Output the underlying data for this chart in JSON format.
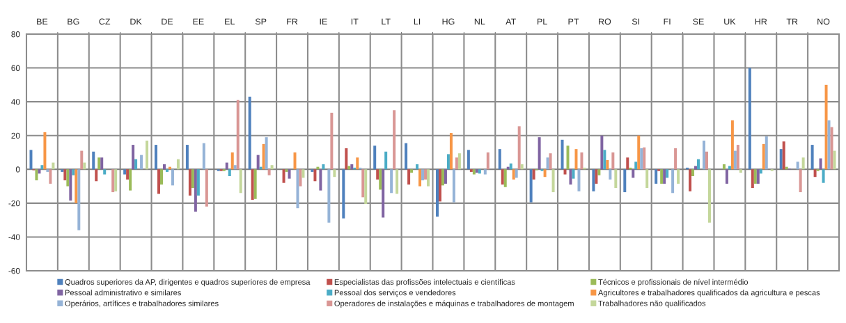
{
  "chart_data": {
    "type": "bar",
    "categories": [
      "BE",
      "BG",
      "CZ",
      "DK",
      "DE",
      "EE",
      "EL",
      "SP",
      "FR",
      "IE",
      "IT",
      "LT",
      "LI",
      "HG",
      "NL",
      "AT",
      "PL",
      "PT",
      "RO",
      "SI",
      "FI",
      "SE",
      "UK",
      "HR",
      "TR",
      "NO"
    ],
    "series": [
      {
        "name": "Quadros superiores da AP, dirigentes e quadros superiores de empresa",
        "color": "#4f81bd",
        "values": [
          11.5,
          -1.5,
          10.5,
          -3,
          14.5,
          14.5,
          -1,
          43,
          0,
          -1.5,
          -29,
          14,
          15.5,
          -28,
          11.5,
          12,
          -19.5,
          17.5,
          -13,
          -13.5,
          -8.5,
          1,
          0,
          60,
          12,
          14.5
        ]
      },
      {
        "name": "Especialistas das profissões intelectuais e científicas",
        "color": "#c0504d",
        "values": [
          -0.5,
          -6.5,
          -7,
          -6,
          -14.5,
          -15.5,
          -1,
          -18,
          -8,
          -7,
          12.5,
          -6,
          -9,
          -19,
          -1.5,
          -9,
          -6,
          -3,
          -8.5,
          7,
          -1,
          -13,
          0,
          -11,
          16.5,
          -4.5
        ]
      },
      {
        "name": "Técnicos e profissionais de nível intermédio",
        "color": "#9bbb59",
        "values": [
          -6.5,
          -10,
          7,
          -12.5,
          -9,
          -11,
          -1,
          -17.5,
          -1.5,
          1.5,
          2,
          -12,
          -2,
          -9.5,
          -3,
          -10.5,
          -0.5,
          14,
          -3.5,
          1,
          -8.5,
          -4,
          3,
          -8.5,
          1.5,
          -1
        ]
      },
      {
        "name": "Pessoal administrativo e similares",
        "color": "#8064a2",
        "values": [
          -2.5,
          -18.5,
          7,
          14.5,
          3,
          -25,
          4,
          8.5,
          -5.5,
          -12.5,
          3,
          -28.5,
          0,
          -8.5,
          -2,
          1.5,
          19,
          -9,
          20,
          -5,
          -8.5,
          2,
          -8.5,
          -8.5,
          0.5,
          6.5
        ]
      },
      {
        "name": "Pessoal dos serviços e vendedores",
        "color": "#4bacc6",
        "values": [
          2.5,
          -3.5,
          -3,
          6,
          -1.5,
          -15.5,
          -4,
          1.5,
          0,
          3,
          1,
          10.5,
          3,
          9,
          -2.5,
          3.5,
          -1,
          -5.5,
          11.5,
          4.5,
          -5,
          6,
          2,
          -2.5,
          0,
          -8
        ]
      },
      {
        "name": "Agricultores e trabalhadores qualificados da agricultura e pescas",
        "color": "#f79646",
        "values": [
          22,
          -20,
          0,
          0,
          1.5,
          0,
          10,
          15,
          10,
          0,
          7,
          0,
          -10,
          21.5,
          0,
          -6,
          -4.5,
          12,
          5.5,
          20,
          0,
          0,
          29,
          15,
          0,
          50
        ]
      },
      {
        "name": "Operários, artífices e trabalhadores similares",
        "color": "#95b3d7",
        "values": [
          -1.5,
          -36,
          0,
          8.5,
          -9.5,
          15.5,
          2.5,
          19,
          -23,
          -31.5,
          1,
          -14,
          -6.5,
          -19.5,
          -3,
          -5,
          7,
          -13,
          -6,
          12.5,
          -14,
          17,
          11,
          19.5,
          4.5,
          29
        ]
      },
      {
        "name": "Operadores de instalações e máquinas e trabalhadores de montagem",
        "color": "#d99694",
        "values": [
          -8.5,
          11,
          -13.5,
          0,
          0,
          -22,
          41,
          -3.5,
          -10,
          33.5,
          -16.5,
          35,
          -6,
          7,
          10,
          25.5,
          9.5,
          10,
          10,
          13,
          12.5,
          10.5,
          14.5,
          0,
          -13.5,
          25
        ]
      },
      {
        "name": "Trabalhadores não qualificados",
        "color": "#c4d79b",
        "values": [
          4,
          4,
          -13,
          17,
          6,
          0,
          -14,
          2.5,
          -5,
          -4.5,
          -20.5,
          -14.5,
          -10,
          9.5,
          0,
          3,
          -13.5,
          1,
          -11,
          -11,
          -8.5,
          -31.5,
          -2,
          -1,
          7,
          11
        ]
      }
    ],
    "ylim": [
      -60,
      80
    ],
    "yticks": [
      -60,
      -40,
      -20,
      0,
      20,
      40,
      60,
      80
    ],
    "grid": true,
    "legend": "bottom"
  }
}
